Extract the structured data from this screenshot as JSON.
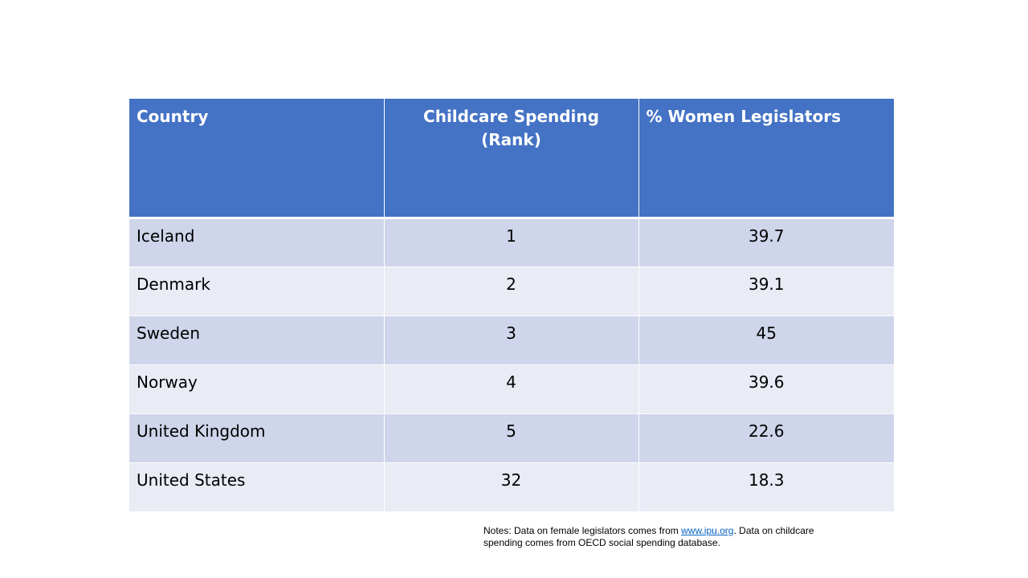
{
  "table": {
    "headers": {
      "country": "Country",
      "spending_line1": "Childcare Spending",
      "spending_line2": "(Rank)",
      "women": "% Women Legislators"
    },
    "rows": [
      {
        "country": "Iceland",
        "rank": "1",
        "women": "39.7"
      },
      {
        "country": "Denmark",
        "rank": "2",
        "women": "39.1"
      },
      {
        "country": "Sweden",
        "rank": "3",
        "women": "45"
      },
      {
        "country": "Norway",
        "rank": "4",
        "women": "39.6"
      },
      {
        "country": "United Kingdom",
        "rank": "5",
        "women": "22.6"
      },
      {
        "country": "United States",
        "rank": "32",
        "women": "18.3"
      }
    ]
  },
  "notes": {
    "prefix": "Notes: Data on female legislators comes from ",
    "link": "www.ipu.org",
    "suffix": ".  Data on childcare spending comes from OECD social spending database."
  },
  "colors": {
    "header_bg": "#4472c4",
    "row_odd_bg": "#cfd5ea",
    "row_even_bg": "#e9ebf5",
    "link": "#0563c1"
  }
}
